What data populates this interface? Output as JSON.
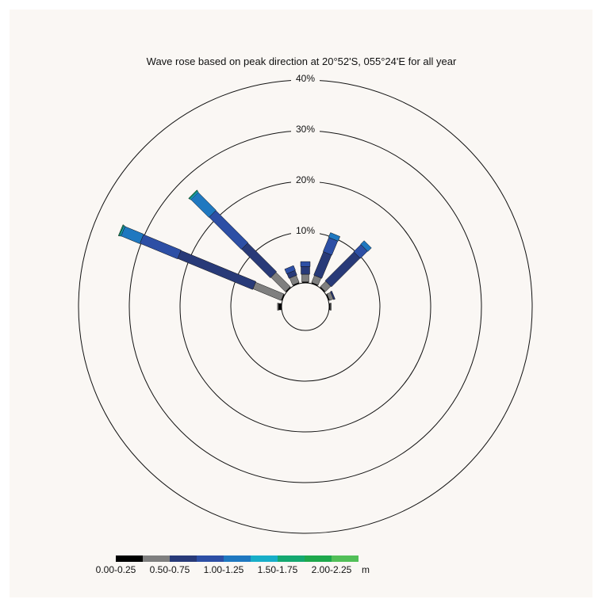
{
  "chart_data": {
    "type": "wave-rose",
    "title": "Wave rose based on peak direction at 20°52'S, 055°24'E for all year",
    "rings": [
      {
        "value": 10,
        "label": "10%"
      },
      {
        "value": 20,
        "label": "20%"
      },
      {
        "value": 30,
        "label": "30%"
      },
      {
        "value": 40,
        "label": "40%"
      }
    ],
    "legend": {
      "bins": [
        "0.00-0.25",
        "0.25-0.50",
        "0.50-0.75",
        "0.75-1.00",
        "1.00-1.25",
        "1.25-1.50",
        "1.50-1.75",
        "1.75-2.00",
        "2.00-2.25"
      ],
      "colors": [
        "#000000",
        "#7f7f7f",
        "#283a78",
        "#2d4fa5",
        "#1f78c0",
        "#18aec8",
        "#14a870",
        "#1ea84c",
        "#52bf58"
      ],
      "labels": [
        "0.00-0.25",
        "0.50-0.75",
        "1.00-1.25",
        "1.50-1.75",
        "2.00-2.25"
      ],
      "unit": "m"
    },
    "sectors": [
      {
        "direction": 270,
        "segments": [
          0.6,
          0.2
        ]
      },
      {
        "direction": 292.5,
        "segments": [
          0.2,
          6.0,
          16.0,
          8.0,
          4.0,
          0.3,
          0.2
        ]
      },
      {
        "direction": 315,
        "segments": [
          0.2,
          4.0,
          8.0,
          9.0,
          5.0,
          0.3,
          0.2
        ]
      },
      {
        "direction": 337.5,
        "segments": [
          0.2,
          1.5,
          1.0,
          1.0
        ]
      },
      {
        "direction": 0,
        "segments": [
          0.2,
          1.5,
          1.5,
          1.0
        ]
      },
      {
        "direction": 22.5,
        "segments": [
          0.2,
          1.5,
          5.0,
          3.0,
          1.0
        ]
      },
      {
        "direction": 45,
        "segments": [
          0.2,
          1.5,
          8.0,
          2.0,
          1.0
        ]
      },
      {
        "direction": 67.5,
        "segments": [
          0.2,
          0.8,
          0.3
        ]
      },
      {
        "direction": 90,
        "segments": [
          0.2,
          0.2
        ]
      }
    ]
  }
}
